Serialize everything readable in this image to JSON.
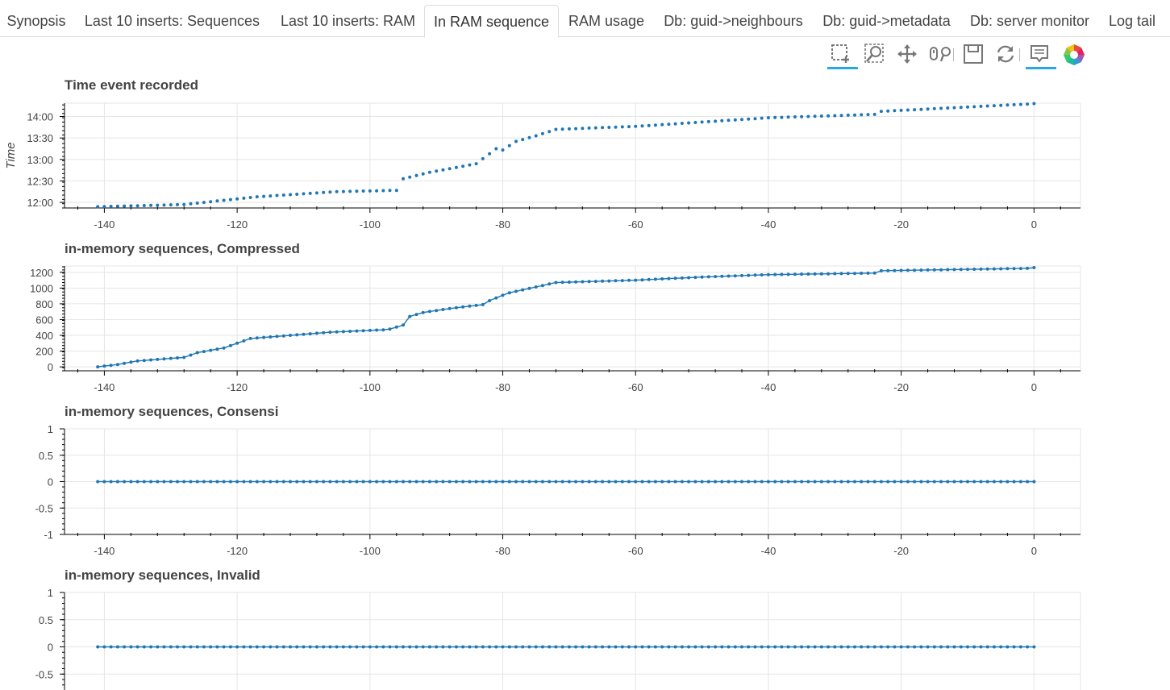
{
  "tabs": [
    {
      "label": "Synopsis",
      "active": false
    },
    {
      "label": "Last 10 inserts: Sequences",
      "active": false
    },
    {
      "label": "Last 10 inserts: RAM",
      "active": false
    },
    {
      "label": "In RAM sequence",
      "active": true
    },
    {
      "label": "RAM usage",
      "active": false
    },
    {
      "label": "Db: guid->neighbours",
      "active": false
    },
    {
      "label": "Db: guid->metadata",
      "active": false
    },
    {
      "label": "Db: server monitor",
      "active": false
    },
    {
      "label": "Log tail",
      "active": false
    }
  ],
  "toolbar": {
    "tools": [
      "box-zoom-icon",
      "zoom-in-icon",
      "pan-icon",
      "wheel-zoom-icon",
      "save-icon",
      "reset-icon",
      "hover-icon",
      "bokeh-logo-icon"
    ],
    "active_color": "#26aae1"
  },
  "colors": {
    "series": "#1f77b4",
    "grid": "#e5e5e5",
    "axis": "#000000"
  },
  "chart_data": [
    {
      "type": "scatter",
      "title": "Time event recorded",
      "xlabel": "",
      "ylabel": "Time",
      "xlim": [
        -146,
        7
      ],
      "ylim": [
        11.87,
        14.31
      ],
      "xticks": [
        -140,
        -120,
        -100,
        -80,
        -60,
        -40,
        -20,
        0
      ],
      "yticks": [
        12.0,
        12.5,
        13.0,
        13.5,
        14.0
      ],
      "ytick_labels": [
        "12:00",
        "12:30",
        "13:00",
        "13:30",
        "14:00"
      ],
      "grid": true,
      "x_range": [
        -141,
        0
      ],
      "anchors": [
        [
          -141,
          11.9
        ],
        [
          -128,
          11.95
        ],
        [
          -125,
          12.0
        ],
        [
          -117,
          12.13
        ],
        [
          -105,
          12.25
        ],
        [
          -96,
          12.28
        ],
        [
          -95,
          12.55
        ],
        [
          -91,
          12.7
        ],
        [
          -84,
          12.9
        ],
        [
          -81,
          13.25
        ],
        [
          -80,
          13.22
        ],
        [
          -78,
          13.42
        ],
        [
          -75,
          13.55
        ],
        [
          -72,
          13.7
        ],
        [
          -60,
          13.77
        ],
        [
          -50,
          13.87
        ],
        [
          -40,
          13.97
        ],
        [
          -24,
          14.05
        ],
        [
          -23,
          14.12
        ],
        [
          -1,
          14.29
        ],
        [
          0,
          14.3
        ]
      ],
      "connect": false
    },
    {
      "type": "line",
      "title": "in-memory sequences, Compressed",
      "xlabel": "",
      "ylabel": "",
      "xlim": [
        -146,
        7
      ],
      "ylim": [
        -50,
        1280
      ],
      "xticks": [
        -140,
        -120,
        -100,
        -80,
        -60,
        -40,
        -20,
        0
      ],
      "yticks": [
        0,
        200,
        400,
        600,
        800,
        1000,
        1200
      ],
      "ytick_labels": [
        "0",
        "200",
        "400",
        "600",
        "800",
        "1000",
        "1200"
      ],
      "grid": true,
      "x_range": [
        -141,
        0
      ],
      "anchors": [
        [
          -141,
          0
        ],
        [
          -138,
          30
        ],
        [
          -135,
          75
        ],
        [
          -128,
          120
        ],
        [
          -127,
          150
        ],
        [
          -126,
          180
        ],
        [
          -122,
          240
        ],
        [
          -120,
          300
        ],
        [
          -118,
          360
        ],
        [
          -112,
          400
        ],
        [
          -106,
          440
        ],
        [
          -98,
          470
        ],
        [
          -97,
          480
        ],
        [
          -95,
          530
        ],
        [
          -94,
          640
        ],
        [
          -92,
          690
        ],
        [
          -88,
          740
        ],
        [
          -83,
          790
        ],
        [
          -82,
          840
        ],
        [
          -80,
          910
        ],
        [
          -79,
          940
        ],
        [
          -72,
          1070
        ],
        [
          -60,
          1100
        ],
        [
          -50,
          1140
        ],
        [
          -40,
          1170
        ],
        [
          -24,
          1190
        ],
        [
          -23,
          1220
        ],
        [
          -1,
          1250
        ],
        [
          0,
          1260
        ]
      ],
      "connect": true
    },
    {
      "type": "line",
      "title": "in-memory sequences, Consensi",
      "xlabel": "",
      "ylabel": "",
      "xlim": [
        -146,
        7
      ],
      "ylim": [
        -1,
        1
      ],
      "xticks": [
        -140,
        -120,
        -100,
        -80,
        -60,
        -40,
        -20,
        0
      ],
      "yticks": [
        -1,
        -0.5,
        0,
        0.5,
        1
      ],
      "ytick_labels": [
        "-1",
        "-0.5",
        "0",
        "0.5",
        "1"
      ],
      "grid": true,
      "x_range": [
        -141,
        0
      ],
      "anchors": [
        [
          -141,
          0
        ],
        [
          0,
          0
        ]
      ],
      "connect": true
    },
    {
      "type": "line",
      "title": "in-memory sequences, Invalid",
      "xlabel": "",
      "ylabel": "",
      "xlim": [
        -146,
        7
      ],
      "ylim": [
        -1,
        1
      ],
      "xticks": [
        -140,
        -120,
        -100,
        -80,
        -60,
        -40,
        -20,
        0
      ],
      "yticks": [
        -0.5,
        0,
        0.5,
        1
      ],
      "ytick_labels": [
        "-0.5",
        "0",
        "0.5",
        "1"
      ],
      "grid": true,
      "x_range": [
        -141,
        0
      ],
      "anchors": [
        [
          -141,
          0
        ],
        [
          0,
          0
        ]
      ],
      "connect": true
    }
  ]
}
